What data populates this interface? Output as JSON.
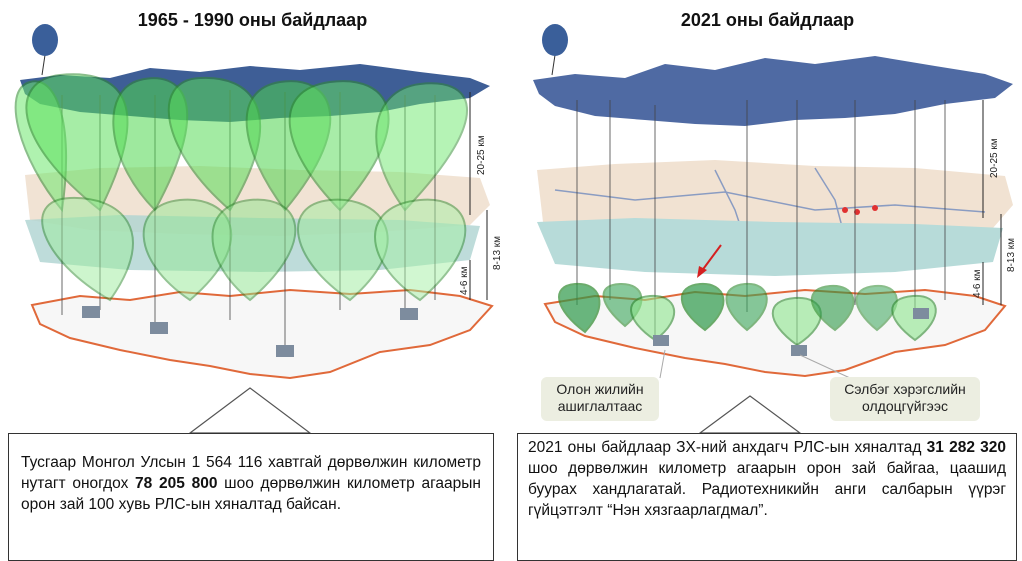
{
  "left": {
    "title": "1965 - 1990 оны байдлаар",
    "alt_high": "20-25 км",
    "alt_mid": "8-13 км",
    "alt_low": "4-6 км",
    "text_part1": "Тусгаар Монгол Улсын 1 564 116 хавтгай дөрвөлжин километр нутагт оногдох ",
    "text_bold": "78 205 800",
    "text_part2": " шоо дөрвөлжин километр агаарын орон зай 100 хувь РЛС-ын хяналтад байсан."
  },
  "right": {
    "title": "2021 оны байдлаар",
    "alt_high": "20-25 км",
    "alt_mid": "8-13 км",
    "alt_low": "4-6 км",
    "label_1": "Олон жилийн ашиглалтаас",
    "label_2": "Сэлбэг хэрэгслийн олдоцгүйгээс",
    "text_part1": "2021 оны байдлаар ЗХ-ний анхдагч РЛС-ын хяналтад ",
    "text_bold": "31 282 320",
    "text_part2": " шоо дөрвөлжин километр агаарын орон зай байгаа, цаашид буурах хандлагатай. Радиотехникийн анги салбарын үүрэг гүйцэтгэлт “Нэн хязгаарлагдмал”."
  }
}
